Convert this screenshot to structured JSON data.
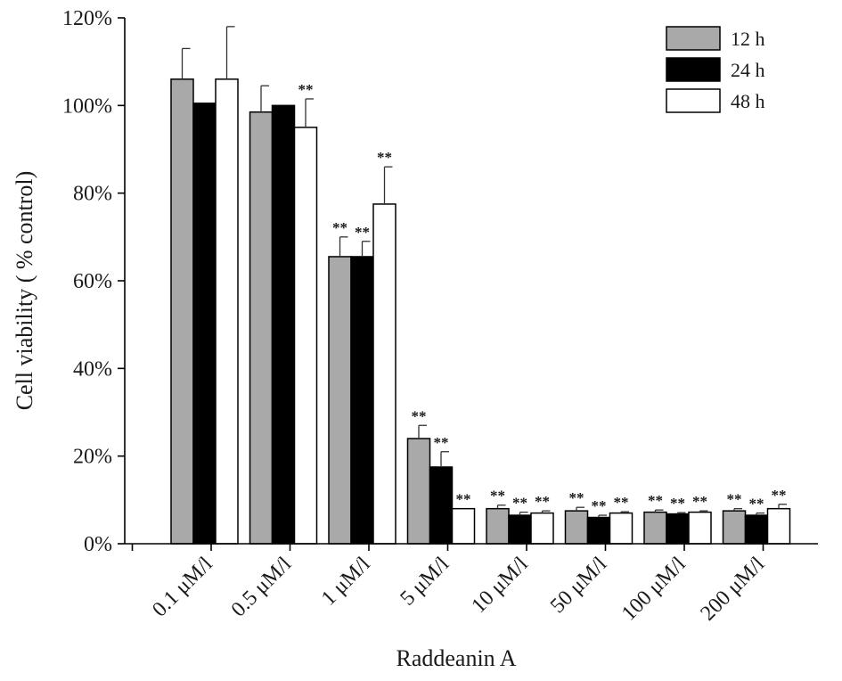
{
  "chart_data": {
    "type": "bar",
    "title": "",
    "xlabel": "Raddeanin A",
    "ylabel": "Cell viability ( % control)",
    "ylim": [
      0,
      120
    ],
    "y_ticks": [
      "0%",
      "20%",
      "40%",
      "60%",
      "80%",
      "100%",
      "120%"
    ],
    "y_tick_values": [
      0,
      20,
      40,
      60,
      80,
      100,
      120
    ],
    "categories": [
      "0.1 μM/l",
      "0.5 μM/l",
      "1 μM/l",
      "5 μM/l",
      "10 μM/l",
      "50 μM/l",
      "100 μM/l",
      "200 μM/l"
    ],
    "series": [
      {
        "name": "12 h",
        "color": "#a9a9a9",
        "values": [
          106,
          98.5,
          65.5,
          24,
          8,
          7.5,
          7.2,
          7.5
        ],
        "errors": [
          7,
          6,
          4.5,
          3,
          0.8,
          0.8,
          0.5,
          0.5
        ],
        "significance": [
          "",
          "",
          "**",
          "**",
          "**",
          "**",
          "**",
          "**"
        ]
      },
      {
        "name": "24 h",
        "color": "#000000",
        "values": [
          100.5,
          100,
          65.5,
          17.5,
          6.5,
          6,
          6.8,
          6.5
        ],
        "errors": [
          0,
          0,
          3.5,
          3.5,
          0.7,
          0.5,
          0.3,
          0.5
        ],
        "significance": [
          "",
          "",
          "**",
          "**",
          "**",
          "**",
          "**",
          "**"
        ]
      },
      {
        "name": "48 h",
        "color": "#ffffff",
        "values": [
          106,
          95,
          77.5,
          8,
          7,
          7,
          7.2,
          8
        ],
        "errors": [
          12,
          6.5,
          8.5,
          0,
          0.5,
          0.3,
          0.3,
          1
        ],
        "significance": [
          "",
          "**",
          "**",
          "**",
          "**",
          "**",
          "**",
          "**"
        ]
      }
    ],
    "legend": {
      "position": "top-right"
    },
    "grid": false
  }
}
